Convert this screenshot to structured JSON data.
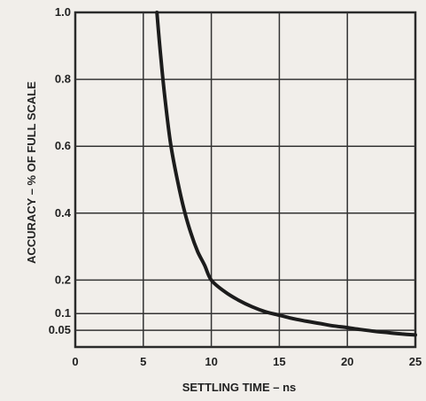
{
  "chart_data": {
    "type": "line",
    "title": "",
    "xlabel": "SETTLING TIME – ns",
    "ylabel": "ACCURACY – % OF FULL SCALE",
    "xlim": [
      0,
      25
    ],
    "ylim": [
      0,
      1.0
    ],
    "x_ticks": [
      0,
      5,
      10,
      15,
      20,
      25
    ],
    "x_tick_labels": [
      "0",
      "5",
      "10",
      "15",
      "20",
      "25"
    ],
    "y_ticks": [
      0.05,
      0.1,
      0.2,
      0.4,
      0.6,
      0.8,
      1.0
    ],
    "y_tick_labels": [
      "0.05",
      "0.1",
      "0.2",
      "0.4",
      "0.6",
      "0.8",
      "1.0"
    ],
    "grid": true,
    "series": [
      {
        "x": [
          6.0,
          6.3,
          6.6,
          7.0,
          7.5,
          8.0,
          8.5,
          9.0,
          9.5,
          10.0,
          11.0,
          12.0,
          13.0,
          14.0,
          15.0,
          16.0,
          17.0,
          18.0,
          19.0,
          20.0,
          21.0,
          22.0,
          23.0,
          24.0,
          25.0
        ],
        "values": [
          1.0,
          0.86,
          0.74,
          0.61,
          0.5,
          0.41,
          0.34,
          0.285,
          0.245,
          0.2,
          0.165,
          0.14,
          0.12,
          0.105,
          0.095,
          0.085,
          0.077,
          0.07,
          0.063,
          0.058,
          0.052,
          0.047,
          0.043,
          0.039,
          0.036
        ]
      }
    ]
  }
}
